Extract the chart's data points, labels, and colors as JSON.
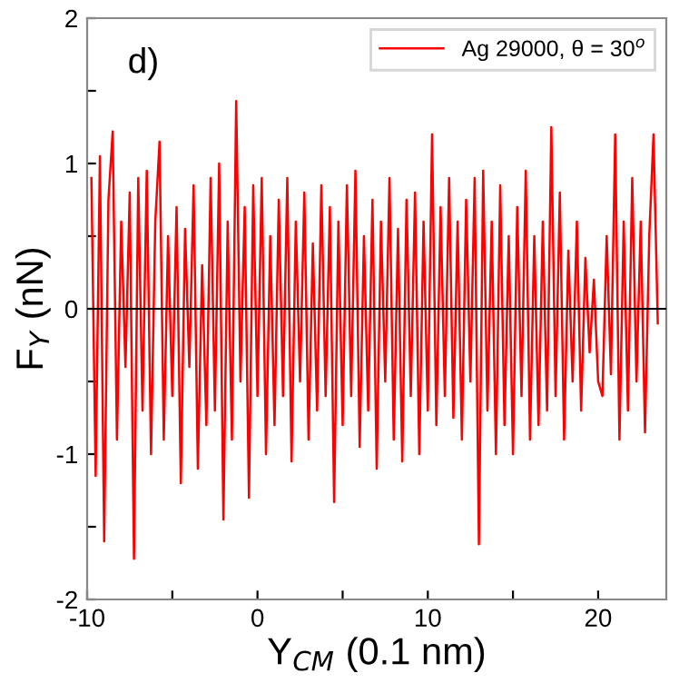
{
  "chart_data": {
    "type": "line",
    "xlabel": "Y$_{CM}$ (0.1 nm)",
    "ylabel": "F$_{Y}$ (nN)",
    "annotations": [
      "d)"
    ],
    "legend": "top right",
    "grid": false,
    "marker": "none",
    "line_style": "solid",
    "xlim": [
      -10,
      24
    ],
    "ylim": [
      -2,
      2
    ],
    "xticks": [
      -10,
      {
        "value": -5,
        "label": null
      },
      0,
      {
        "value": 5,
        "label": null
      },
      10,
      {
        "value": 15,
        "label": null
      },
      20
    ],
    "yticks": [
      -2,
      {
        "value": -1.5,
        "label": null
      },
      -1,
      {
        "value": -0.5,
        "label": null
      },
      0,
      {
        "value": 0.5,
        "label": null
      },
      1,
      {
        "value": 1.5,
        "label": null
      },
      2
    ],
    "ref_lines": [
      {
        "axis": "y",
        "value": 0,
        "color": "#000000"
      }
    ],
    "series": [
      {
        "name": "Ag 29000, θ = 30$^{o}$",
        "color": "#ff0000",
        "x": [
          -9.75,
          -9.5,
          -9.25,
          -9,
          -8.75,
          -8.5,
          -8.25,
          -8,
          -7.75,
          -7.5,
          -7.25,
          -7,
          -6.75,
          -6.5,
          -6.25,
          -6,
          -5.75,
          -5.5,
          -5.25,
          -5,
          -4.75,
          -4.5,
          -4.25,
          -4,
          -3.75,
          -3.5,
          -3.25,
          -3,
          -2.75,
          -2.5,
          -2.25,
          -2,
          -1.75,
          -1.5,
          -1.25,
          -1,
          -0.75,
          -0.5,
          -0.25,
          0,
          0.25,
          0.5,
          0.75,
          1,
          1.25,
          1.5,
          1.75,
          2,
          2.25,
          2.5,
          2.75,
          3,
          3.25,
          3.5,
          3.75,
          4,
          4.25,
          4.5,
          4.75,
          5,
          5.25,
          5.5,
          5.75,
          6,
          6.25,
          6.5,
          6.75,
          7,
          7.25,
          7.5,
          7.75,
          8,
          8.25,
          8.5,
          8.75,
          9,
          9.25,
          9.5,
          9.75,
          10,
          10.25,
          10.5,
          10.75,
          11,
          11.25,
          11.5,
          11.75,
          12,
          12.25,
          12.5,
          12.75,
          13,
          13.25,
          13.5,
          13.75,
          14,
          14.25,
          14.5,
          14.75,
          15,
          15.25,
          15.5,
          15.75,
          16,
          16.25,
          16.5,
          16.75,
          17,
          17.25,
          17.5,
          17.75,
          18,
          18.25,
          18.5,
          18.75,
          19,
          19.25,
          19.5,
          19.75,
          20,
          20.25,
          20.5,
          20.75,
          21,
          21.25,
          21.5,
          21.75,
          22,
          22.25,
          22.5,
          22.75,
          23,
          23.25,
          23.5
        ],
        "values": [
          0.9,
          -1.15,
          1.05,
          -1.6,
          0.75,
          1.22,
          -0.9,
          0.6,
          -0.4,
          0.8,
          -1.72,
          0.9,
          -0.7,
          0.95,
          -1.0,
          0.6,
          1.15,
          -0.9,
          0.5,
          -0.6,
          0.7,
          -1.2,
          0.55,
          -0.4,
          0.85,
          -1.1,
          0.3,
          -0.8,
          0.9,
          -0.7,
          1.0,
          -1.45,
          0.6,
          -0.9,
          1.43,
          -0.5,
          0.7,
          -1.3,
          0.85,
          -0.6,
          0.9,
          -1.0,
          0.5,
          -0.8,
          0.75,
          -0.6,
          0.9,
          -1.05,
          0.6,
          -0.5,
          0.8,
          -0.9,
          0.45,
          -0.7,
          0.85,
          -0.6,
          0.7,
          -1.33,
          0.6,
          -0.8,
          0.85,
          -0.6,
          0.95,
          -0.95,
          0.5,
          -0.7,
          0.75,
          -1.1,
          0.6,
          -0.5,
          0.9,
          -0.9,
          0.55,
          -1.05,
          0.75,
          -0.6,
          0.8,
          -1.0,
          0.6,
          -0.7,
          1.2,
          -0.8,
          0.7,
          -0.6,
          0.9,
          -0.75,
          0.6,
          -0.9,
          0.75,
          -0.5,
          0.9,
          -1.62,
          0.95,
          -0.7,
          0.6,
          -1.0,
          0.85,
          -0.8,
          0.5,
          -1.0,
          0.7,
          -0.6,
          0.95,
          -0.9,
          0.5,
          -0.8,
          0.6,
          -0.7,
          1.25,
          -0.6,
          0.8,
          -0.9,
          0.4,
          -0.5,
          0.6,
          -0.7,
          0.35,
          -0.3,
          0.2,
          -0.5,
          -0.6,
          0.5,
          -0.45,
          1.2,
          -0.9,
          0.6,
          -0.7,
          0.9,
          -0.5,
          0.6,
          -0.85,
          0.5,
          1.2,
          -0.1
        ]
      }
    ]
  }
}
